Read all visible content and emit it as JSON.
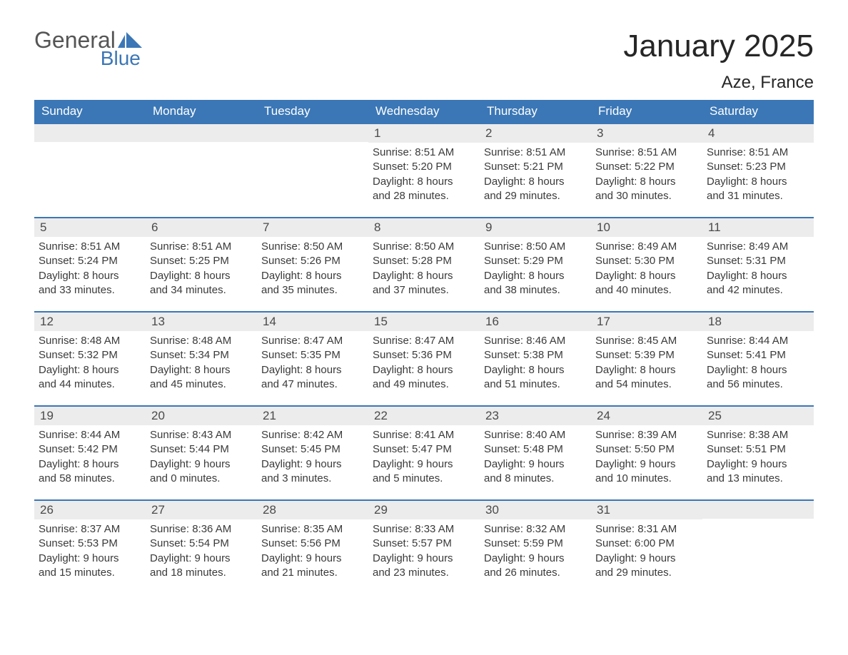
{
  "logo": {
    "line1": "General",
    "line2": "Blue"
  },
  "title": "January 2025",
  "subtitle": "Aze, France",
  "colors": {
    "header_bg": "#3b77b6",
    "header_text": "#ffffff",
    "daynum_bg": "#ececec",
    "row_border": "#3b77b6",
    "title_color": "#262626",
    "logo_gray": "#555555",
    "logo_blue": "#3b77b6",
    "body_text": "#3a3a3a"
  },
  "day_headers": [
    "Sunday",
    "Monday",
    "Tuesday",
    "Wednesday",
    "Thursday",
    "Friday",
    "Saturday"
  ],
  "weeks": [
    [
      {
        "blank": true
      },
      {
        "blank": true
      },
      {
        "blank": true
      },
      {
        "n": "1",
        "sunrise": "8:51 AM",
        "sunset": "5:20 PM",
        "dl_h": "8",
        "dl_m": "28"
      },
      {
        "n": "2",
        "sunrise": "8:51 AM",
        "sunset": "5:21 PM",
        "dl_h": "8",
        "dl_m": "29"
      },
      {
        "n": "3",
        "sunrise": "8:51 AM",
        "sunset": "5:22 PM",
        "dl_h": "8",
        "dl_m": "30"
      },
      {
        "n": "4",
        "sunrise": "8:51 AM",
        "sunset": "5:23 PM",
        "dl_h": "8",
        "dl_m": "31"
      }
    ],
    [
      {
        "n": "5",
        "sunrise": "8:51 AM",
        "sunset": "5:24 PM",
        "dl_h": "8",
        "dl_m": "33"
      },
      {
        "n": "6",
        "sunrise": "8:51 AM",
        "sunset": "5:25 PM",
        "dl_h": "8",
        "dl_m": "34"
      },
      {
        "n": "7",
        "sunrise": "8:50 AM",
        "sunset": "5:26 PM",
        "dl_h": "8",
        "dl_m": "35"
      },
      {
        "n": "8",
        "sunrise": "8:50 AM",
        "sunset": "5:28 PM",
        "dl_h": "8",
        "dl_m": "37"
      },
      {
        "n": "9",
        "sunrise": "8:50 AM",
        "sunset": "5:29 PM",
        "dl_h": "8",
        "dl_m": "38"
      },
      {
        "n": "10",
        "sunrise": "8:49 AM",
        "sunset": "5:30 PM",
        "dl_h": "8",
        "dl_m": "40"
      },
      {
        "n": "11",
        "sunrise": "8:49 AM",
        "sunset": "5:31 PM",
        "dl_h": "8",
        "dl_m": "42"
      }
    ],
    [
      {
        "n": "12",
        "sunrise": "8:48 AM",
        "sunset": "5:32 PM",
        "dl_h": "8",
        "dl_m": "44"
      },
      {
        "n": "13",
        "sunrise": "8:48 AM",
        "sunset": "5:34 PM",
        "dl_h": "8",
        "dl_m": "45"
      },
      {
        "n": "14",
        "sunrise": "8:47 AM",
        "sunset": "5:35 PM",
        "dl_h": "8",
        "dl_m": "47"
      },
      {
        "n": "15",
        "sunrise": "8:47 AM",
        "sunset": "5:36 PM",
        "dl_h": "8",
        "dl_m": "49"
      },
      {
        "n": "16",
        "sunrise": "8:46 AM",
        "sunset": "5:38 PM",
        "dl_h": "8",
        "dl_m": "51"
      },
      {
        "n": "17",
        "sunrise": "8:45 AM",
        "sunset": "5:39 PM",
        "dl_h": "8",
        "dl_m": "54"
      },
      {
        "n": "18",
        "sunrise": "8:44 AM",
        "sunset": "5:41 PM",
        "dl_h": "8",
        "dl_m": "56"
      }
    ],
    [
      {
        "n": "19",
        "sunrise": "8:44 AM",
        "sunset": "5:42 PM",
        "dl_h": "8",
        "dl_m": "58"
      },
      {
        "n": "20",
        "sunrise": "8:43 AM",
        "sunset": "5:44 PM",
        "dl_h": "9",
        "dl_m": "0"
      },
      {
        "n": "21",
        "sunrise": "8:42 AM",
        "sunset": "5:45 PM",
        "dl_h": "9",
        "dl_m": "3"
      },
      {
        "n": "22",
        "sunrise": "8:41 AM",
        "sunset": "5:47 PM",
        "dl_h": "9",
        "dl_m": "5"
      },
      {
        "n": "23",
        "sunrise": "8:40 AM",
        "sunset": "5:48 PM",
        "dl_h": "9",
        "dl_m": "8"
      },
      {
        "n": "24",
        "sunrise": "8:39 AM",
        "sunset": "5:50 PM",
        "dl_h": "9",
        "dl_m": "10"
      },
      {
        "n": "25",
        "sunrise": "8:38 AM",
        "sunset": "5:51 PM",
        "dl_h": "9",
        "dl_m": "13"
      }
    ],
    [
      {
        "n": "26",
        "sunrise": "8:37 AM",
        "sunset": "5:53 PM",
        "dl_h": "9",
        "dl_m": "15"
      },
      {
        "n": "27",
        "sunrise": "8:36 AM",
        "sunset": "5:54 PM",
        "dl_h": "9",
        "dl_m": "18"
      },
      {
        "n": "28",
        "sunrise": "8:35 AM",
        "sunset": "5:56 PM",
        "dl_h": "9",
        "dl_m": "21"
      },
      {
        "n": "29",
        "sunrise": "8:33 AM",
        "sunset": "5:57 PM",
        "dl_h": "9",
        "dl_m": "23"
      },
      {
        "n": "30",
        "sunrise": "8:32 AM",
        "sunset": "5:59 PM",
        "dl_h": "9",
        "dl_m": "26"
      },
      {
        "n": "31",
        "sunrise": "8:31 AM",
        "sunset": "6:00 PM",
        "dl_h": "9",
        "dl_m": "29"
      },
      {
        "blank": true
      }
    ]
  ],
  "labels": {
    "sunrise_prefix": "Sunrise: ",
    "sunset_prefix": "Sunset: ",
    "daylight_prefix": "Daylight: ",
    "hours_word": " hours",
    "and_word": "and ",
    "minutes_word": " minutes."
  }
}
